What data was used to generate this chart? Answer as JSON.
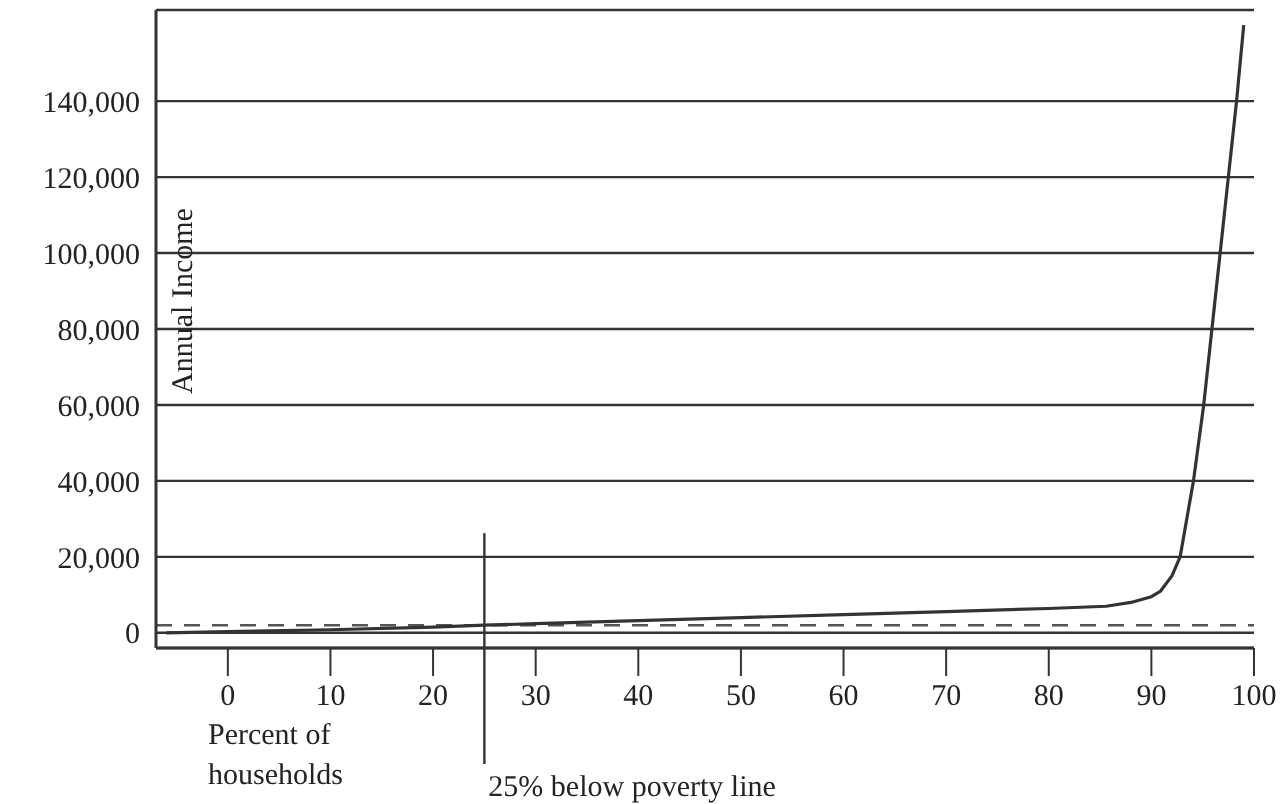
{
  "chart_data": {
    "type": "line",
    "xlabel": "Percent of households",
    "ylabel": "Annual Income",
    "x": [
      -6,
      0,
      10,
      20,
      25,
      30,
      40,
      50,
      60,
      70,
      80,
      85.6,
      88,
      90,
      90.9,
      92,
      92.8,
      94.1,
      95.1,
      95.9,
      96.7,
      97.5,
      98.3,
      99
    ],
    "series": [
      {
        "color": "#333333",
        "values": [
          0,
          300,
          800,
          1500,
          2000,
          2400,
          3200,
          4000,
          4800,
          5600,
          6400,
          7000,
          8000,
          9500,
          11000,
          15000,
          20000,
          40000,
          60000,
          80000,
          100000,
          120000,
          140000,
          160000
        ]
      }
    ],
    "xlim": [
      -7,
      100
    ],
    "xticks": [
      0,
      10,
      20,
      30,
      40,
      50,
      60,
      70,
      80,
      90,
      100
    ],
    "ylim": [
      -4000,
      164000
    ],
    "yticks": [
      0,
      {
        "value": 20000,
        "label": "20,000"
      },
      {
        "value": 40000,
        "label": "40,000"
      },
      {
        "value": 60000,
        "label": "60,000"
      },
      {
        "value": 80000,
        "label": "80,000"
      },
      {
        "value": 100000,
        "label": "100,000"
      },
      {
        "value": 120000,
        "label": "120,000"
      },
      {
        "value": 140000,
        "label": "140,000"
      }
    ],
    "grid": "y",
    "marker": "none",
    "line_style": "solid",
    "ref_lines": [
      {
        "axis": "y",
        "value": 2000,
        "line_style": "dashed",
        "color": "#555555"
      },
      {
        "axis": "x",
        "value": 25,
        "label": "25% below poverty line",
        "color": "#333333"
      }
    ]
  }
}
